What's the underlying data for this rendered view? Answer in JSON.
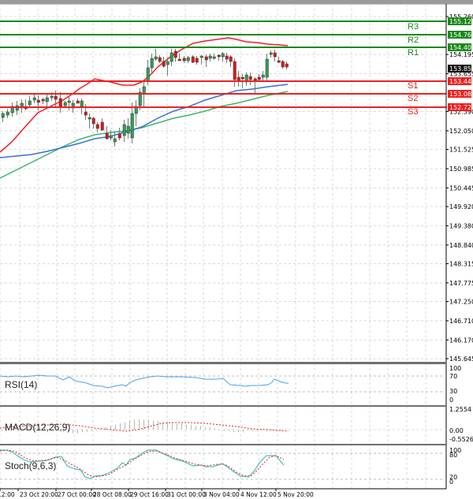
{
  "chart_data": [
    {
      "type": "candlestick",
      "title": "",
      "price_axis": {
        "ticks": [
          "155.260",
          "154.195",
          "153.655",
          "152.590",
          "152.050",
          "151.525",
          "150.985",
          "150.445",
          "149.920",
          "149.380",
          "148.840",
          "148.315",
          "147.775",
          "147.250",
          "146.710",
          "146.170",
          "145.645"
        ],
        "range": [
          145.645,
          155.45
        ]
      },
      "current_price": "153.856",
      "levels": [
        {
          "name": "R3",
          "value": "155.120",
          "color": "#1a8a1a"
        },
        {
          "name": "R2",
          "value": "154.760",
          "color": "#1a8a1a"
        },
        {
          "name": "R1",
          "value": "154.400",
          "color": "#1a8a1a"
        },
        {
          "name": "S1",
          "value": "153.440",
          "color": "#ee2020"
        },
        {
          "name": "S2",
          "value": "153.080",
          "color": "#ee2020"
        },
        {
          "name": "S3",
          "value": "152.720",
          "color": "#ee2020"
        }
      ],
      "moving_averages": [
        {
          "name": "MA fast",
          "color": "#ee2020"
        },
        {
          "name": "MA medium",
          "color": "#3b6fd6"
        },
        {
          "name": "MA slow",
          "color": "#3cb46e"
        }
      ],
      "x_labels": [
        "12:00",
        "23 Oct 20:00",
        "27 Oct 00:00",
        "28 Oct 08:00",
        "29 Oct 16:00",
        "31 Oct 00:00",
        "3 Nov 04:00",
        "4 Nov 12:00",
        "5 Nov 20:00"
      ],
      "grid": true
    },
    {
      "type": "line",
      "title": "RSI(14)",
      "y_ticks": [
        "100",
        "70",
        "30",
        "0"
      ],
      "ylim": [
        0,
        100
      ],
      "series": [
        {
          "name": "RSI(14)",
          "color": "#4aa3e8"
        }
      ]
    },
    {
      "type": "bar",
      "title": "MACD(12,26,9)",
      "y_ticks": [
        "1.2554",
        "0.00",
        "-0.5526"
      ],
      "ylim": [
        -0.5526,
        1.2554
      ],
      "series": [
        {
          "name": "MACD histogram",
          "color": "#b0b0b0"
        },
        {
          "name": "Signal",
          "color": "#ee2020"
        }
      ]
    },
    {
      "type": "line",
      "title": "Stoch(9,6,3)",
      "y_ticks": [
        "100",
        "80",
        "20",
        "0"
      ],
      "ylim": [
        0,
        100
      ],
      "series": [
        {
          "name": "%K",
          "color": "#40c0c0"
        },
        {
          "name": "%D",
          "color": "#ee2020"
        }
      ]
    }
  ],
  "labels": {
    "rsi": "RSI(14)",
    "macd": "MACD(12,26,9)",
    "stoch": "Stoch(9,6,3)"
  }
}
